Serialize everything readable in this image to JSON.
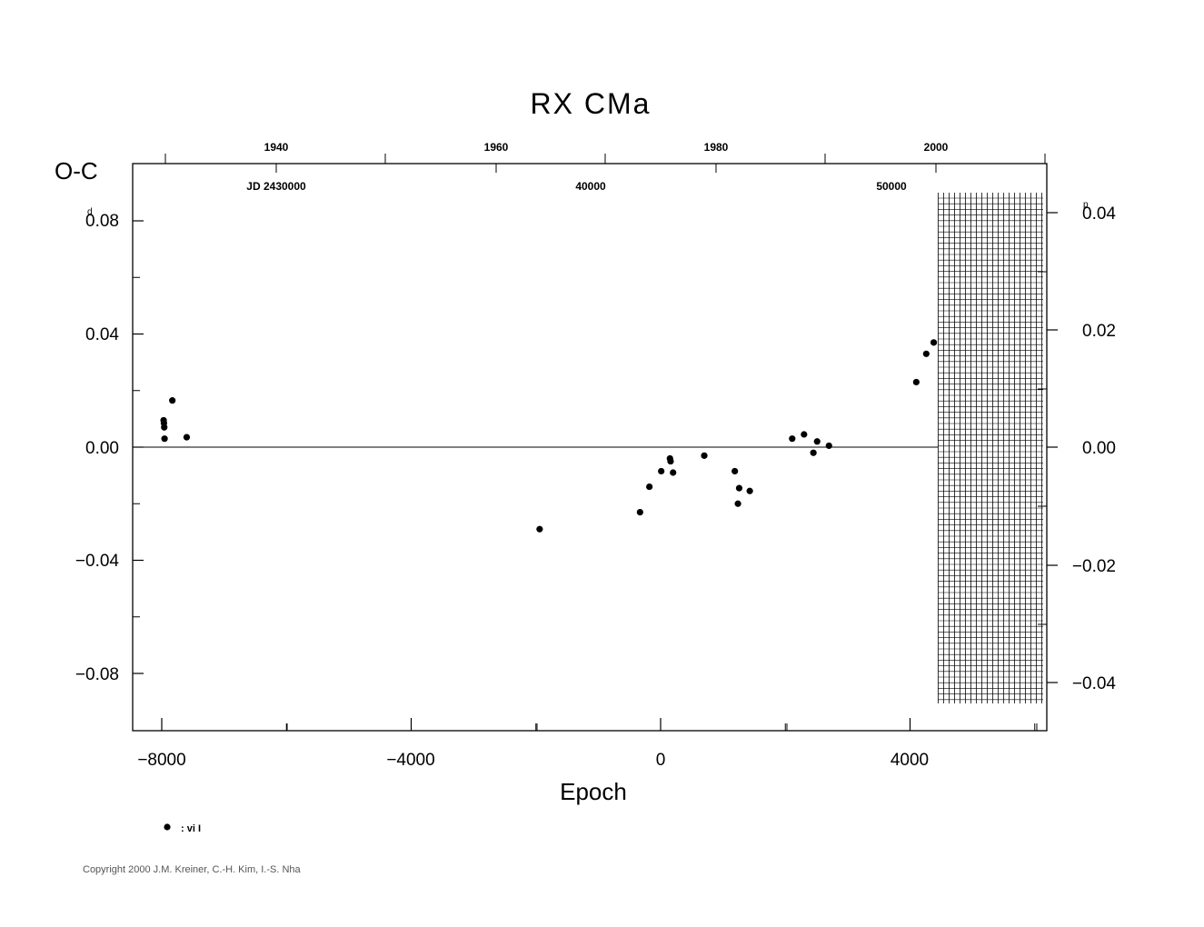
{
  "chart_data": {
    "type": "scatter",
    "title": "RX  CMa",
    "xlabel": "Epoch",
    "ylabel": "O-C",
    "y_unit_left": "d",
    "y_unit_right": "p",
    "xlim": [
      -8500,
      6200
    ],
    "ylim": [
      -0.1,
      0.1
    ],
    "x_ticks": [
      -8000,
      -4000,
      0,
      4000
    ],
    "x_tick_labels": [
      "−8000",
      "−4000",
      "0",
      "4000"
    ],
    "y_ticks_left": [
      0.08,
      0.04,
      0.0,
      -0.04,
      -0.08
    ],
    "y_tick_labels_left": [
      "0.08",
      "0.04",
      "0.00",
      "−0.04",
      "−0.08"
    ],
    "y_ticks_right_labels": [
      "0.04",
      "0.02",
      "0.00",
      "−0.02",
      "−0.04"
    ],
    "top_year_ticks": [
      "1940",
      "1960",
      "1980",
      "2000"
    ],
    "top_jd_labels": [
      "JD 2430000",
      "40000",
      "50000"
    ],
    "hatched_region_x": [
      4450,
      6200
    ],
    "zero_line": true,
    "legend_label": ": vi I",
    "points": [
      {
        "x": -7970,
        "y": 0.0095
      },
      {
        "x": -7965,
        "y": 0.0085
      },
      {
        "x": -7960,
        "y": 0.007
      },
      {
        "x": -7955,
        "y": 0.003
      },
      {
        "x": -7830,
        "y": 0.0165
      },
      {
        "x": -7600,
        "y": 0.0035
      },
      {
        "x": -1940,
        "y": -0.029
      },
      {
        "x": -330,
        "y": -0.023
      },
      {
        "x": -180,
        "y": -0.014
      },
      {
        "x": 10,
        "y": -0.0085
      },
      {
        "x": 150,
        "y": -0.004
      },
      {
        "x": 160,
        "y": -0.005
      },
      {
        "x": 200,
        "y": -0.009
      },
      {
        "x": 700,
        "y": -0.003
      },
      {
        "x": 1190,
        "y": -0.0085
      },
      {
        "x": 1260,
        "y": -0.0145
      },
      {
        "x": 1240,
        "y": -0.02
      },
      {
        "x": 1430,
        "y": -0.0155
      },
      {
        "x": 2110,
        "y": 0.003
      },
      {
        "x": 2300,
        "y": 0.0045
      },
      {
        "x": 2450,
        "y": -0.002
      },
      {
        "x": 2510,
        "y": 0.002
      },
      {
        "x": 2700,
        "y": 0.0005
      },
      {
        "x": 4100,
        "y": 0.023
      },
      {
        "x": 4260,
        "y": 0.033
      },
      {
        "x": 4380,
        "y": 0.037
      }
    ]
  },
  "copyright": "Copyright 2000 J.M. Kreiner, C.-H. Kim, I.-S. Nha"
}
